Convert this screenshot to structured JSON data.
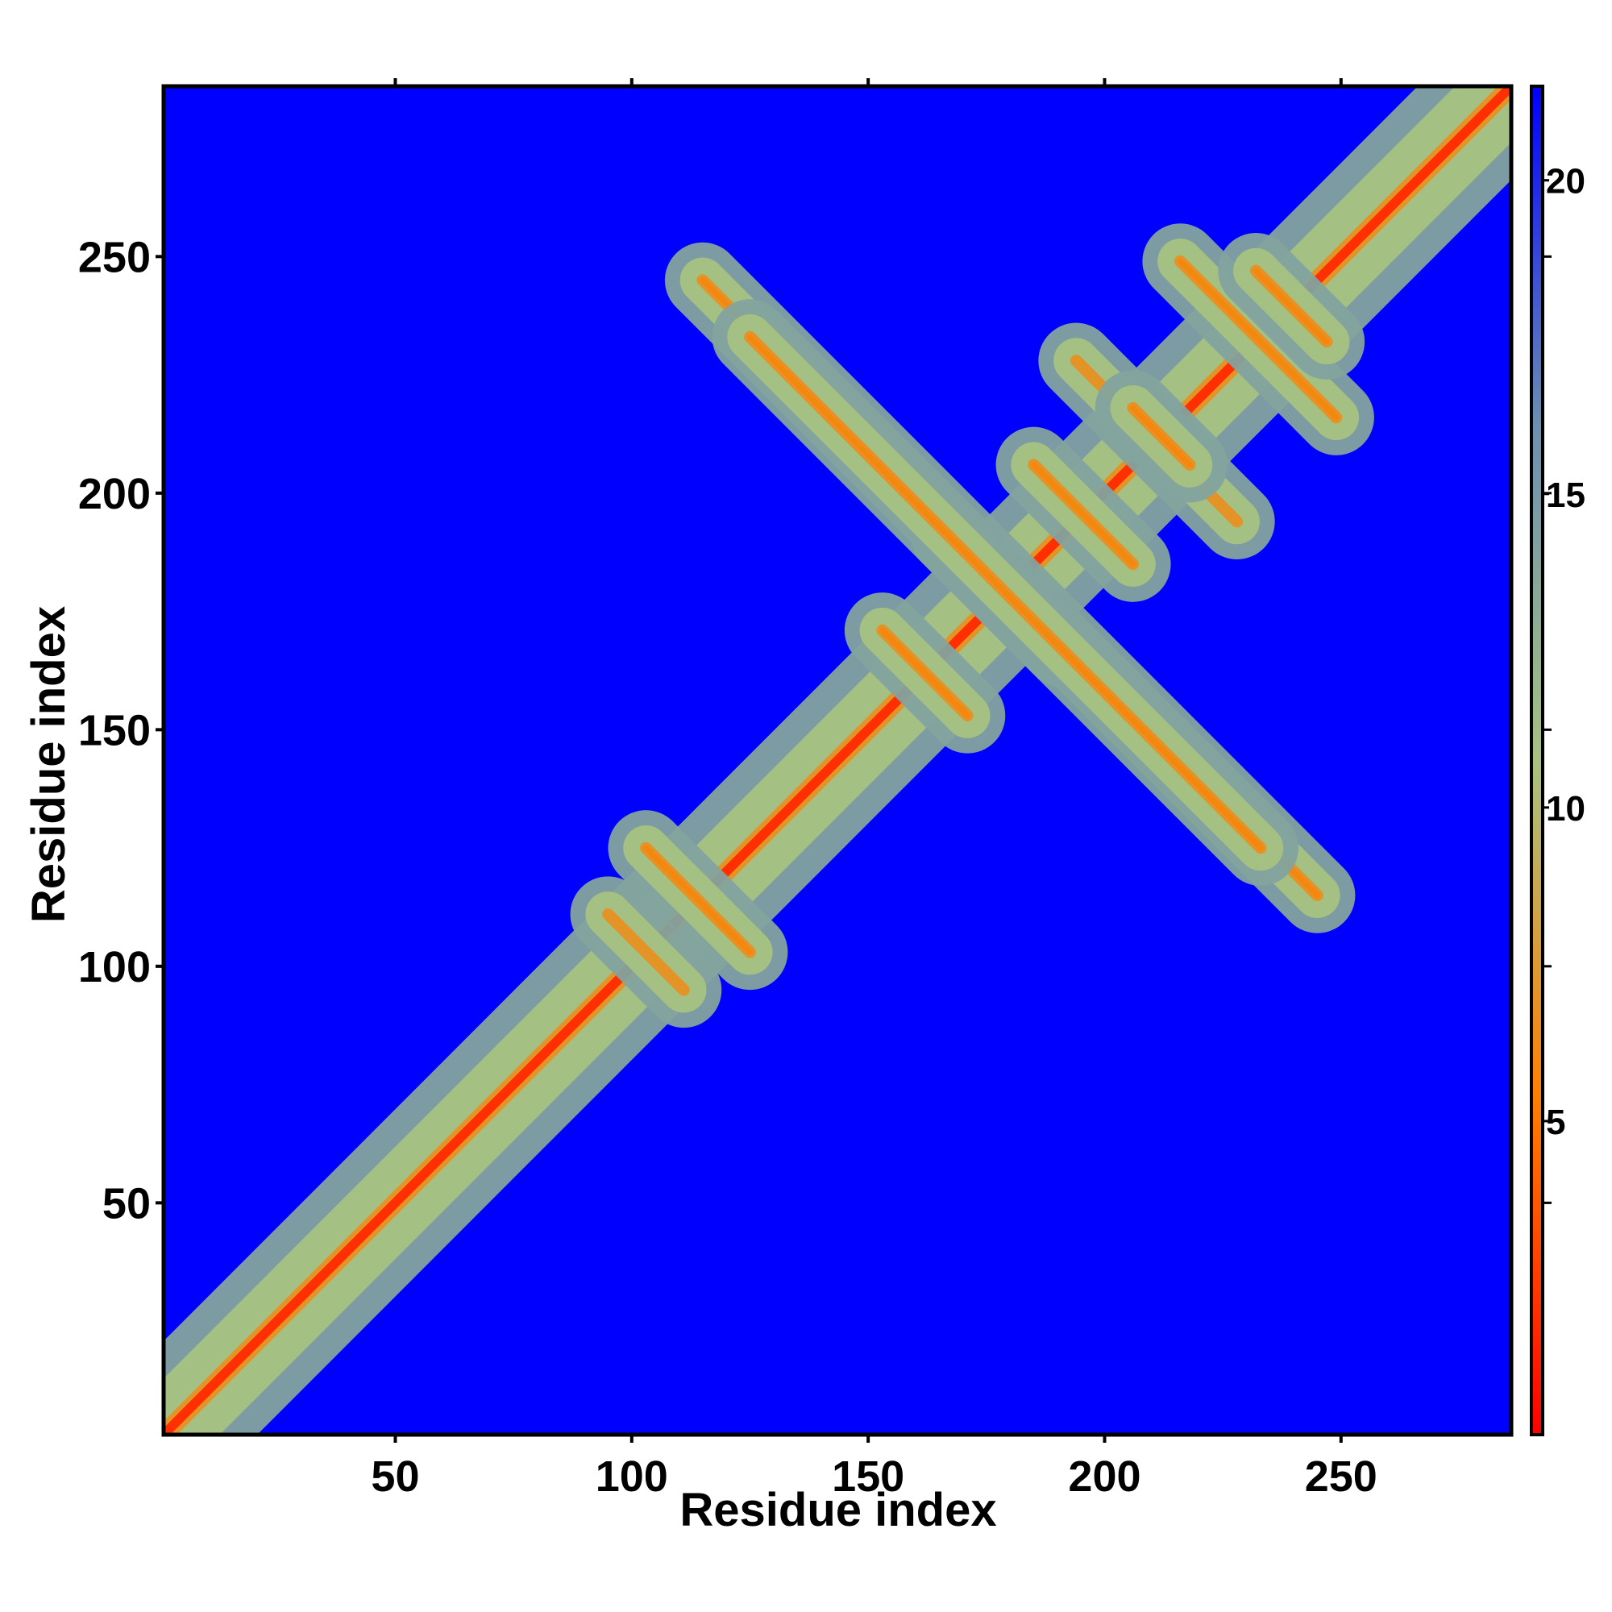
{
  "chart_data": {
    "type": "heatmap",
    "title": "",
    "xlabel": "Residue index",
    "ylabel": "Residue index",
    "xlim": [
      1,
      286
    ],
    "ylim": [
      1,
      286
    ],
    "x_ticks": [
      50,
      100,
      150,
      200,
      250
    ],
    "y_ticks": [
      50,
      100,
      150,
      200,
      250
    ],
    "colorbar": {
      "ticks": [
        5,
        10,
        15,
        20
      ],
      "range": [
        0,
        21.5
      ],
      "colors": [
        "#ff0000",
        "#ff7f00",
        "#a7c281",
        "#6b8fb1",
        "#0000ff"
      ]
    },
    "background_value": 21.5,
    "contacts": [
      {
        "from": [
          1,
          1
        ],
        "to": [
          286,
          286
        ],
        "value": 2,
        "note": "main diagonal"
      },
      {
        "from": [
          103,
          125
        ],
        "to": [
          125,
          103
        ],
        "value": 6
      },
      {
        "from": [
          95,
          111
        ],
        "to": [
          111,
          95
        ],
        "value": 7
      },
      {
        "from": [
          167,
          191
        ],
        "to": [
          191,
          167
        ],
        "value": 6
      },
      {
        "from": [
          153,
          171
        ],
        "to": [
          171,
          153
        ],
        "value": 6
      },
      {
        "from": [
          185,
          206
        ],
        "to": [
          206,
          185
        ],
        "value": 6
      },
      {
        "from": [
          194,
          228
        ],
        "to": [
          228,
          194
        ],
        "value": 7
      },
      {
        "from": [
          206,
          218
        ],
        "to": [
          218,
          206
        ],
        "value": 6
      },
      {
        "from": [
          216,
          249
        ],
        "to": [
          249,
          216
        ],
        "value": 6
      },
      {
        "from": [
          232,
          247
        ],
        "to": [
          247,
          232
        ],
        "value": 6
      },
      {
        "from": [
          115,
          245
        ],
        "to": [
          245,
          115
        ],
        "value": 6
      },
      {
        "from": [
          125,
          233
        ],
        "to": [
          233,
          125
        ],
        "value": 6
      }
    ]
  }
}
